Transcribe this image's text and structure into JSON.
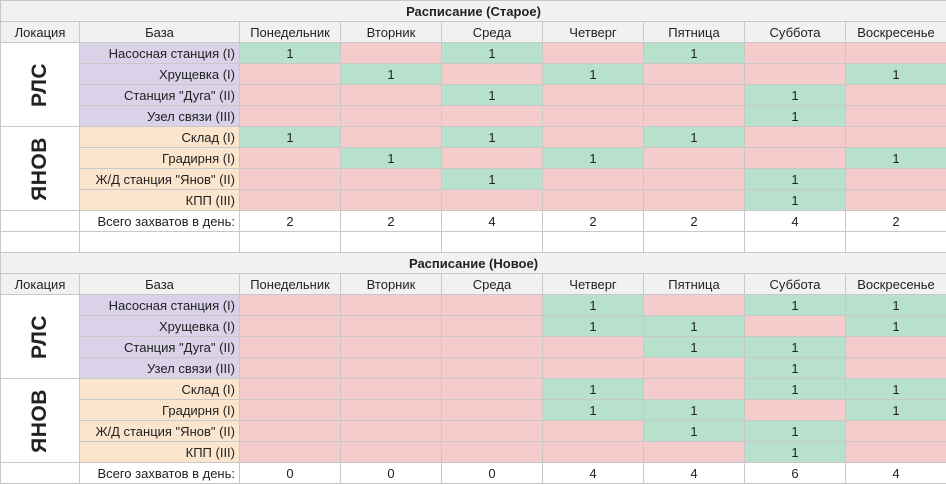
{
  "columns": {
    "location": "Локация",
    "base": "База",
    "days": [
      "Понедельник",
      "Вторник",
      "Среда",
      "Четверг",
      "Пятница",
      "Суббота",
      "Воскресенье"
    ]
  },
  "old_schedule": {
    "title": "Расписание (Старое)",
    "groups": [
      {
        "location": "РЛС",
        "rows": [
          {
            "base": "Насосная станция (I)",
            "cells": [
              "1",
              "",
              "1",
              "",
              "1",
              "",
              ""
            ]
          },
          {
            "base": "Хрущевка (I)",
            "cells": [
              "",
              "1",
              "",
              "1",
              "",
              "",
              "1"
            ]
          },
          {
            "base": "Станция \"Дуга\" (II)",
            "cells": [
              "",
              "",
              "1",
              "",
              "",
              "1",
              ""
            ]
          },
          {
            "base": "Узел связи (III)",
            "cells": [
              "",
              "",
              "",
              "",
              "",
              "1",
              ""
            ]
          }
        ]
      },
      {
        "location": "ЯНОВ",
        "rows": [
          {
            "base": "Склад (I)",
            "cells": [
              "1",
              "",
              "1",
              "",
              "1",
              "",
              ""
            ]
          },
          {
            "base": "Градирня  (I)",
            "cells": [
              "",
              "1",
              "",
              "1",
              "",
              "",
              "1"
            ]
          },
          {
            "base": "Ж/Д станция \"Янов\" (II)",
            "cells": [
              "",
              "",
              "1",
              "",
              "",
              "1",
              ""
            ]
          },
          {
            "base": "КПП (III)",
            "cells": [
              "",
              "",
              "",
              "",
              "",
              "1",
              ""
            ]
          }
        ]
      }
    ],
    "totals_label": "Всего захватов в день:",
    "totals": [
      "2",
      "2",
      "4",
      "2",
      "2",
      "4",
      "2"
    ]
  },
  "new_schedule": {
    "title": "Расписание (Новое)",
    "groups": [
      {
        "location": "РЛС",
        "rows": [
          {
            "base": "Насосная станция (I)",
            "cells": [
              "",
              "",
              "",
              "1",
              "",
              "1",
              "1"
            ]
          },
          {
            "base": "Хрущевка (I)",
            "cells": [
              "",
              "",
              "",
              "1",
              "1",
              "",
              "1"
            ]
          },
          {
            "base": "Станция \"Дуга\" (II)",
            "cells": [
              "",
              "",
              "",
              "",
              "1",
              "1",
              ""
            ]
          },
          {
            "base": "Узел связи (III)",
            "cells": [
              "",
              "",
              "",
              "",
              "",
              "1",
              ""
            ]
          }
        ]
      },
      {
        "location": "ЯНОВ",
        "rows": [
          {
            "base": "Склад (I)",
            "cells": [
              "",
              "",
              "",
              "1",
              "",
              "1",
              "1"
            ]
          },
          {
            "base": "Градирня  (I)",
            "cells": [
              "",
              "",
              "",
              "1",
              "1",
              "",
              "1"
            ]
          },
          {
            "base": "Ж/Д станция \"Янов\" (II)",
            "cells": [
              "",
              "",
              "",
              "",
              "1",
              "1",
              ""
            ]
          },
          {
            "base": "КПП (III)",
            "cells": [
              "",
              "",
              "",
              "",
              "",
              "1",
              ""
            ]
          }
        ]
      }
    ],
    "totals_label": "Всего захватов в день:",
    "totals": [
      "0",
      "0",
      "0",
      "4",
      "4",
      "6",
      "4"
    ]
  },
  "colors": {
    "available": "#b7e1cd",
    "unavailable": "#f4cccc",
    "location_rls": "#d9d2e9",
    "location_yanov": "#fce5cd",
    "header": "#f1f1f1"
  }
}
